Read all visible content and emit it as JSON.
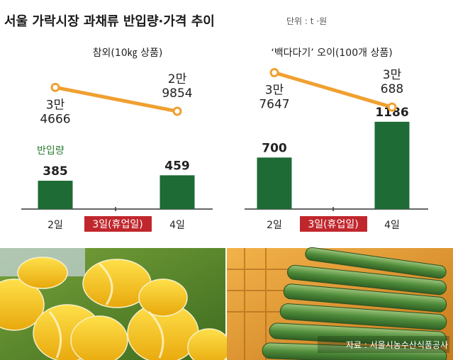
{
  "title": "서울 가락시장 과채류 반입량·가격 추이",
  "unit": "단위 : t ·원",
  "legend_volume": "반입량",
  "closed_label": "3일(휴업일)",
  "source": "자료 : 서울시농수산식품공사",
  "colors": {
    "bar": "#1e6b35",
    "line": "#f0a030",
    "closed_bg": "#c0272d",
    "legend_text": "#2e7d32"
  },
  "chart_data": [
    {
      "type": "bar",
      "subtitle": "참외(10㎏ 상품)",
      "categories": [
        "2일",
        "3일(휴업일)",
        "4일"
      ],
      "volume": [
        385,
        null,
        459
      ],
      "volume_labels": [
        "385",
        "",
        "459"
      ],
      "price": [
        34666,
        null,
        29854
      ],
      "price_labels": [
        [
          "3만",
          "4666"
        ],
        null,
        [
          "2만",
          "9854"
        ]
      ],
      "ylim": [
        0,
        1300
      ]
    },
    {
      "type": "bar",
      "subtitle": "‘백다다기’ 오이(100개 상품)",
      "categories": [
        "2일",
        "3일(휴업일)",
        "4일"
      ],
      "volume": [
        700,
        null,
        1186
      ],
      "volume_labels": [
        "700",
        "",
        "1186"
      ],
      "price": [
        37647,
        null,
        30688
      ],
      "price_labels": [
        [
          "3만",
          "7647"
        ],
        null,
        [
          "3만",
          "688"
        ]
      ],
      "ylim": [
        0,
        1300
      ]
    }
  ],
  "photos": {
    "left": "참외 photo",
    "right": "cucumber photo"
  }
}
